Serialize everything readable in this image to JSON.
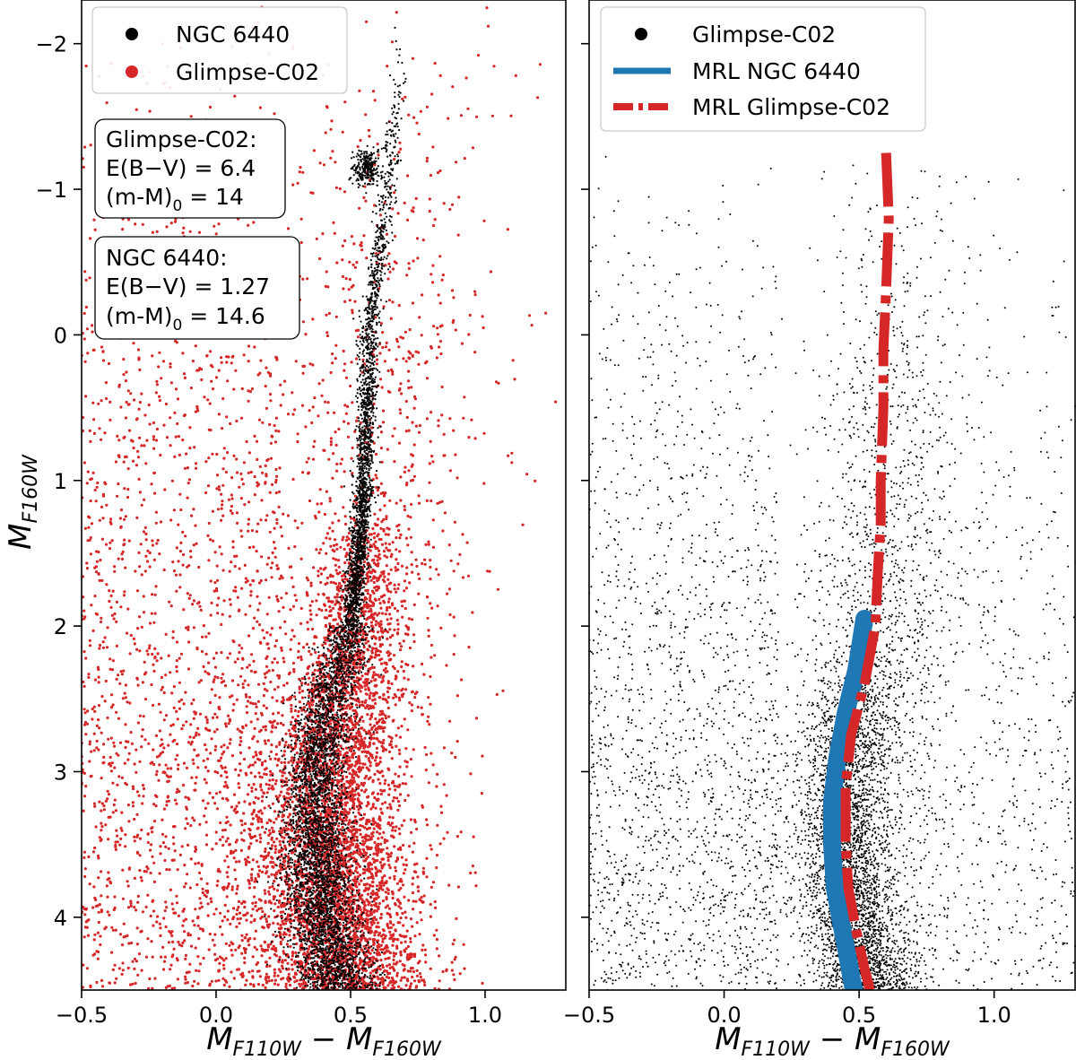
{
  "chart_data": [
    {
      "type": "scatter",
      "panel": "left",
      "xlabel": "M_F110W − M_F160W",
      "ylabel": "M_F160W",
      "xlim": [
        -0.5,
        1.3
      ],
      "ylim": [
        4.5,
        -2.3
      ],
      "y_inverted": true,
      "xticks": [
        "−0.5",
        "0.0",
        "0.5",
        "1.0"
      ],
      "yticks": [
        "−2",
        "−1",
        "0",
        "1",
        "2",
        "3",
        "4"
      ],
      "legend": {
        "placement": "top-left",
        "entries": [
          {
            "label": "NGC 6440",
            "marker": "dot",
            "color": "#000000"
          },
          {
            "label": "Glimpse-C02",
            "marker": "dot",
            "color": "#d62728"
          }
        ]
      },
      "annotations": [
        {
          "lines": [
            "Glimpse-C02:",
            "E(B−V) = 6.4",
            "(m-M)",
            "0",
            " = 14"
          ]
        },
        {
          "lines": [
            "NGC 6440:",
            "E(B−V) = 1.27",
            "(m-M)",
            "0",
            " = 14.6"
          ]
        }
      ],
      "series": [
        {
          "name": "NGC 6440",
          "color": "#000000",
          "ridge": [
            [
              0.47,
              4.6
            ],
            [
              0.4,
              4.0
            ],
            [
              0.37,
              3.5
            ],
            [
              0.37,
              3.0
            ],
            [
              0.42,
              2.5
            ],
            [
              0.5,
              2.0
            ],
            [
              0.53,
              1.5
            ],
            [
              0.55,
              1.0
            ],
            [
              0.56,
              0.5
            ],
            [
              0.57,
              0.0
            ],
            [
              0.6,
              -0.5
            ],
            [
              0.62,
              -0.75
            ],
            [
              0.66,
              -1.5
            ],
            [
              0.7,
              -2.3
            ]
          ],
          "clump": {
            "x": 0.56,
            "y": -1.14
          }
        },
        {
          "name": "Glimpse-C02",
          "color": "#d62728",
          "ridge": [
            [
              0.5,
              4.6
            ],
            [
              0.45,
              4.0
            ],
            [
              0.43,
              3.5
            ],
            [
              0.43,
              3.0
            ],
            [
              0.47,
              2.5
            ],
            [
              0.52,
              2.0
            ],
            [
              0.55,
              1.5
            ],
            [
              0.57,
              1.0
            ],
            [
              0.59,
              0.0
            ],
            [
              0.61,
              -0.75
            ],
            [
              0.66,
              -1.5
            ],
            [
              0.7,
              -2.3
            ]
          ],
          "clump": {
            "x": 0.56,
            "y": -1.14
          },
          "field_spread": {
            "x_range": [
              -0.5,
              1.3
            ],
            "y_range": [
              -2.3,
              4.5
            ]
          }
        }
      ]
    },
    {
      "type": "scatter",
      "panel": "right",
      "xlabel": "M_F110W − M_F160W",
      "ylabel": "",
      "xlim": [
        -0.5,
        1.3
      ],
      "ylim": [
        4.5,
        -2.3
      ],
      "y_inverted": true,
      "xticks": [
        "−0.5",
        "0.0",
        "0.5",
        "1.0"
      ],
      "legend": {
        "placement": "top-left",
        "entries": [
          {
            "label": "Glimpse-C02",
            "marker": "dot",
            "color": "#000000"
          },
          {
            "label": "MRL NGC 6440",
            "marker": "solid-line",
            "color": "#1f77b4"
          },
          {
            "label": "MRL Glimpse-C02",
            "marker": "dashdot-line",
            "color": "#d62728"
          }
        ]
      },
      "series": [
        {
          "name": "Glimpse-C02",
          "color": "#000000",
          "field_spread": {
            "x_range": [
              -0.5,
              1.3
            ],
            "y_range": [
              -1.3,
              4.5
            ]
          }
        },
        {
          "name": "MRL NGC 6440",
          "color": "#1f77b4",
          "x": [
            0.52,
            0.49,
            0.45,
            0.42,
            0.4,
            0.4,
            0.41,
            0.45,
            0.48
          ],
          "y": [
            1.95,
            2.3,
            2.6,
            2.9,
            3.2,
            3.5,
            3.8,
            4.2,
            4.5
          ]
        },
        {
          "name": "MRL Glimpse-C02",
          "color": "#d62728",
          "x": [
            0.6,
            0.61,
            0.6,
            0.59,
            0.59,
            0.58,
            0.58,
            0.57,
            0.56,
            0.52,
            0.47,
            0.45,
            0.45,
            0.46,
            0.49,
            0.52,
            0.54
          ],
          "y": [
            -1.25,
            -0.8,
            -0.3,
            0.1,
            0.5,
            1.0,
            1.3,
            1.6,
            2.0,
            2.4,
            2.75,
            3.1,
            3.5,
            3.8,
            4.1,
            4.35,
            4.5
          ]
        }
      ]
    }
  ]
}
